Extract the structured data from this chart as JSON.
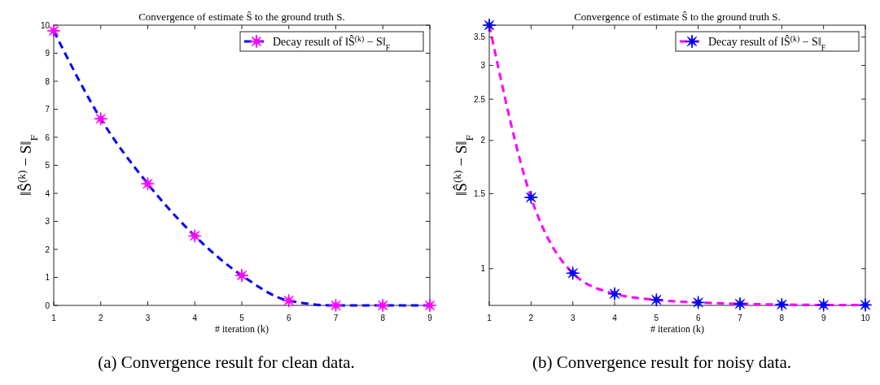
{
  "chart_data": [
    {
      "type": "line",
      "title": "Convergence of estimate Ŝ to the ground truth S.",
      "xlabel": "# iteration (k)",
      "ylabel": "‖Ŝ$^{(k)}$ − S‖$_{F}$",
      "x": [
        1,
        2,
        3,
        4,
        5,
        6,
        7,
        8,
        9
      ],
      "xlim": [
        1,
        9
      ],
      "xticks": [
        1,
        2,
        3,
        4,
        5,
        6,
        7,
        8,
        9
      ],
      "ylim": [
        0,
        10
      ],
      "yticks": [
        0,
        1,
        2,
        3,
        4,
        5,
        6,
        7,
        8,
        9,
        10
      ],
      "series": [
        {
          "name": "Decay result of ‖Ŝ$^{(k)}$ − S‖$_{F}$",
          "color": "#0000ff",
          "colors": [
            "#ff00ff",
            "#ff00ff",
            "#ff00ff",
            "#ff00ff",
            "#ff00ff",
            "#ff00ff",
            "#ff00ff",
            "#ff00ff",
            "#ff00ff"
          ],
          "values": [
            9.8,
            6.66,
            4.34,
            2.48,
            1.07,
            0.17,
            0,
            0,
            0
          ]
        }
      ],
      "marker": "star",
      "line_style": "dashed",
      "legend": "top right",
      "grid": false,
      "annotations": [
        "(a) Convergence result for clean data."
      ]
    },
    {
      "type": "line",
      "title": "Convergence of estimate Ŝ to the ground truth S.",
      "xlabel": "# iteration (k)",
      "ylabel": "‖Ŝ$^{(k)}$ − S‖$_{F}$",
      "x": [
        1,
        2,
        3,
        4,
        5,
        6,
        7,
        8,
        9,
        10
      ],
      "xlim": [
        1,
        10
      ],
      "xticks": [
        1,
        2,
        3,
        4,
        5,
        6,
        7,
        8,
        9,
        10
      ],
      "log": true,
      "ylim": [
        0.82,
        3.73
      ],
      "yticks": [
        1,
        1.5,
        2,
        2.5,
        3,
        3.5
      ],
      "series": [
        {
          "name": "Decay result of ‖Ŝ$^{(k)}$ − S‖$_{F}$",
          "color": "#ff00ff",
          "colors": [
            "#0000ff",
            "#0000ff",
            "#0000ff",
            "#0000ff",
            "#0000ff",
            "#0000ff",
            "#0000ff",
            "#0000ff",
            "#0000ff",
            "#0000ff"
          ],
          "values": [
            3.73,
            1.47,
            0.976,
            0.873,
            0.845,
            0.833,
            0.827,
            0.824,
            0.822,
            0.822
          ]
        }
      ],
      "marker": "star",
      "line_style": "dashed",
      "legend": "top right",
      "grid": false,
      "annotations": [
        "(b) Convergence result for noisy data."
      ]
    }
  ]
}
